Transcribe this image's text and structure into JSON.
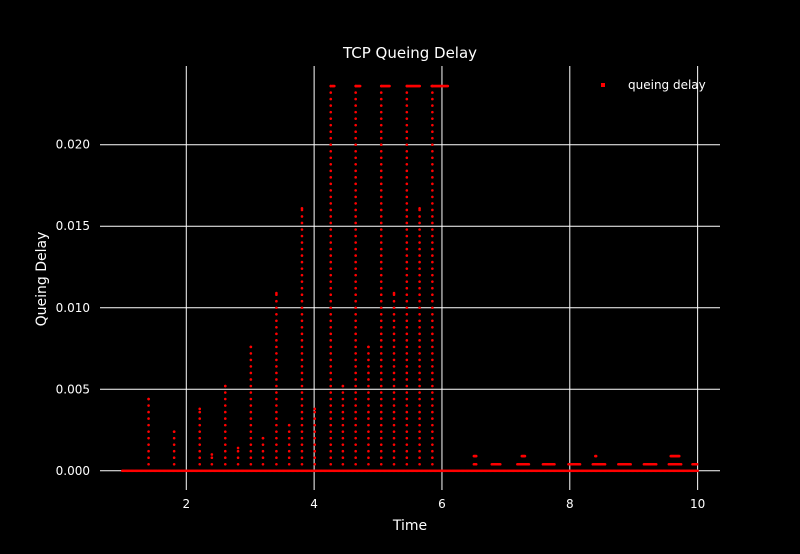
{
  "chart_data": {
    "type": "scatter",
    "title": "TCP Queing Delay",
    "xlabel": "Time",
    "ylabel": "Queing Delay",
    "xlim": [
      0.65,
      10.35
    ],
    "ylim": [
      -0.00118,
      0.02483
    ],
    "xticks": [
      2,
      4,
      6,
      8,
      10
    ],
    "xtick_labels": [
      "2",
      "4",
      "6",
      "8",
      "10"
    ],
    "yticks": [
      0,
      0.005,
      0.01,
      0.015,
      0.02
    ],
    "ytick_labels": [
      "0.000",
      "0.005",
      "0.010",
      "0.015",
      "0.020"
    ],
    "grid": true,
    "background": "#000000",
    "grid_color": "#ffffff",
    "marker_color": "#ff0000",
    "legend": {
      "position": "top-right",
      "entries": [
        "queing delay"
      ]
    },
    "series": [
      {
        "name": "queing delay",
        "columns": [
          {
            "x": 1.41,
            "ymax": 0.0044,
            "step": 0.0004
          },
          {
            "x": 1.81,
            "ymax": 0.0024,
            "step": 0.0004
          },
          {
            "x": 2.21,
            "ymax": 0.0038,
            "step": 0.0004
          },
          {
            "x": 2.4,
            "ymax": 0.001,
            "step": 0.0004
          },
          {
            "x": 2.61,
            "ymax": 0.0052,
            "step": 0.0004
          },
          {
            "x": 2.81,
            "ymax": 0.0014,
            "step": 0.0004
          },
          {
            "x": 3.01,
            "ymax": 0.0076,
            "step": 0.0004
          },
          {
            "x": 3.2,
            "ymax": 0.002,
            "step": 0.0004
          },
          {
            "x": 3.41,
            "ymax": 0.0109,
            "step": 0.0004
          },
          {
            "x": 3.61,
            "ymax": 0.0028,
            "step": 0.0004
          },
          {
            "x": 3.81,
            "ymax": 0.0161,
            "step": 0.0004
          },
          {
            "x": 4.01,
            "ymax": 0.0038,
            "step": 0.0004
          },
          {
            "x": 4.26,
            "ymax": 0.0236,
            "step": 0.0004
          },
          {
            "x": 4.45,
            "ymax": 0.0052,
            "step": 0.0004
          },
          {
            "x": 4.65,
            "ymax": 0.0236,
            "step": 0.0004
          },
          {
            "x": 4.85,
            "ymax": 0.0076,
            "step": 0.0004
          },
          {
            "x": 5.05,
            "ymax": 0.0236,
            "step": 0.0004
          },
          {
            "x": 5.25,
            "ymax": 0.0109,
            "step": 0.0004
          },
          {
            "x": 5.45,
            "ymax": 0.0236,
            "step": 0.0004
          },
          {
            "x": 5.65,
            "ymax": 0.0161,
            "step": 0.0004
          },
          {
            "x": 5.85,
            "ymax": 0.0236,
            "step": 0.0004
          }
        ],
        "top_clusters": [
          {
            "x_from": 4.28,
            "x_to": 4.32,
            "y": 0.0236
          },
          {
            "x_from": 4.66,
            "x_to": 4.72,
            "y": 0.0236
          },
          {
            "x_from": 5.06,
            "x_to": 5.18,
            "y": 0.0236
          },
          {
            "x_from": 5.46,
            "x_to": 5.66,
            "y": 0.0236
          },
          {
            "x_from": 5.84,
            "x_to": 6.1,
            "y": 0.0236
          }
        ],
        "baseline": {
          "x_from": 1.0,
          "x_to": 10.0,
          "y": 0.0
        },
        "low_clusters": [
          {
            "x_from": 6.5,
            "x_to": 6.54,
            "y": 0.0004
          },
          {
            "x_from": 6.5,
            "x_to": 6.54,
            "y": 0.0009
          },
          {
            "x_from": 6.78,
            "x_to": 6.92,
            "y": 0.0004
          },
          {
            "x_from": 7.18,
            "x_to": 7.36,
            "y": 0.0004
          },
          {
            "x_from": 7.25,
            "x_to": 7.3,
            "y": 0.0009
          },
          {
            "x_from": 7.58,
            "x_to": 7.76,
            "y": 0.0004
          },
          {
            "x_from": 7.98,
            "x_to": 8.16,
            "y": 0.0004
          },
          {
            "x_from": 8.36,
            "x_to": 8.56,
            "y": 0.0004
          },
          {
            "x_from": 8.4,
            "x_to": 8.42,
            "y": 0.0009
          },
          {
            "x_from": 8.76,
            "x_to": 8.96,
            "y": 0.0004
          },
          {
            "x_from": 9.16,
            "x_to": 9.36,
            "y": 0.0004
          },
          {
            "x_from": 9.55,
            "x_to": 9.75,
            "y": 0.0004
          },
          {
            "x_from": 9.58,
            "x_to": 9.72,
            "y": 0.0009
          },
          {
            "x_from": 9.92,
            "x_to": 10.0,
            "y": 0.0004
          }
        ]
      }
    ]
  }
}
